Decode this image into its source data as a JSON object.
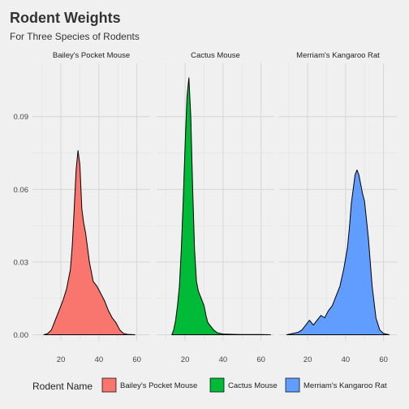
{
  "chart_data": {
    "type": "area",
    "title": "Rodent Weights",
    "subtitle": "For Three Species of Rodents",
    "xlabel": "",
    "ylabel": "",
    "xlim": [
      5,
      67
    ],
    "ylim": [
      -0.0025,
      0.112
    ],
    "x_ticks": [
      20,
      40,
      60
    ],
    "y_ticks": [
      0.0,
      0.03,
      0.06,
      0.09
    ],
    "y_tick_labels": [
      "0.00",
      "0.03",
      "0.06",
      "0.09"
    ],
    "grid": true,
    "legend": {
      "title": "Rodent Name",
      "position": "bottom",
      "entries": [
        "Bailey's Pocket Mouse",
        "Cactus Mouse",
        "Merriam's Kangaroo Rat"
      ]
    },
    "series": [
      {
        "name": "Bailey's Pocket Mouse",
        "color": "#F8766D",
        "x": [
          11,
          13,
          15,
          17,
          19,
          21,
          23,
          25,
          26,
          27,
          28,
          29,
          30,
          31,
          32,
          33,
          35,
          37,
          39,
          41,
          43,
          45,
          47,
          49,
          51,
          53,
          55,
          57,
          59
        ],
        "y": [
          0.0,
          0.0005,
          0.002,
          0.006,
          0.01,
          0.014,
          0.019,
          0.027,
          0.037,
          0.052,
          0.068,
          0.076,
          0.07,
          0.052,
          0.046,
          0.042,
          0.03,
          0.022,
          0.02,
          0.017,
          0.014,
          0.01,
          0.007,
          0.005,
          0.002,
          0.0005,
          0.0002,
          0.0001,
          0.0
        ]
      },
      {
        "name": "Cactus Mouse",
        "color": "#00BA38",
        "x": [
          13,
          14,
          15,
          16,
          17,
          18,
          19,
          20,
          21,
          22,
          23,
          24,
          25,
          26,
          27,
          28,
          29,
          30,
          31,
          32,
          33,
          35,
          37,
          40,
          45,
          50,
          55,
          60,
          65
        ],
        "y": [
          0.0,
          0.002,
          0.006,
          0.012,
          0.02,
          0.035,
          0.055,
          0.078,
          0.098,
          0.106,
          0.09,
          0.06,
          0.035,
          0.022,
          0.018,
          0.016,
          0.014,
          0.012,
          0.008,
          0.005,
          0.004,
          0.002,
          0.0008,
          0.0003,
          0.0002,
          0.0001,
          0.0001,
          0.0001,
          0.0
        ]
      },
      {
        "name": "Merriam's Kangaroo Rat",
        "color": "#619CFF",
        "x": [
          9,
          12,
          15,
          17,
          19,
          21,
          23,
          25,
          27,
          29,
          31,
          33,
          35,
          37,
          39,
          41,
          42,
          43,
          44,
          45,
          46,
          47,
          48,
          49,
          50,
          52,
          54,
          56,
          58,
          60,
          63
        ],
        "y": [
          0.0,
          0.0005,
          0.001,
          0.002,
          0.004,
          0.006,
          0.004,
          0.006,
          0.008,
          0.007,
          0.01,
          0.012,
          0.016,
          0.02,
          0.027,
          0.036,
          0.044,
          0.054,
          0.06,
          0.066,
          0.068,
          0.066,
          0.062,
          0.058,
          0.055,
          0.04,
          0.02,
          0.007,
          0.002,
          0.0005,
          0.0
        ]
      }
    ]
  }
}
